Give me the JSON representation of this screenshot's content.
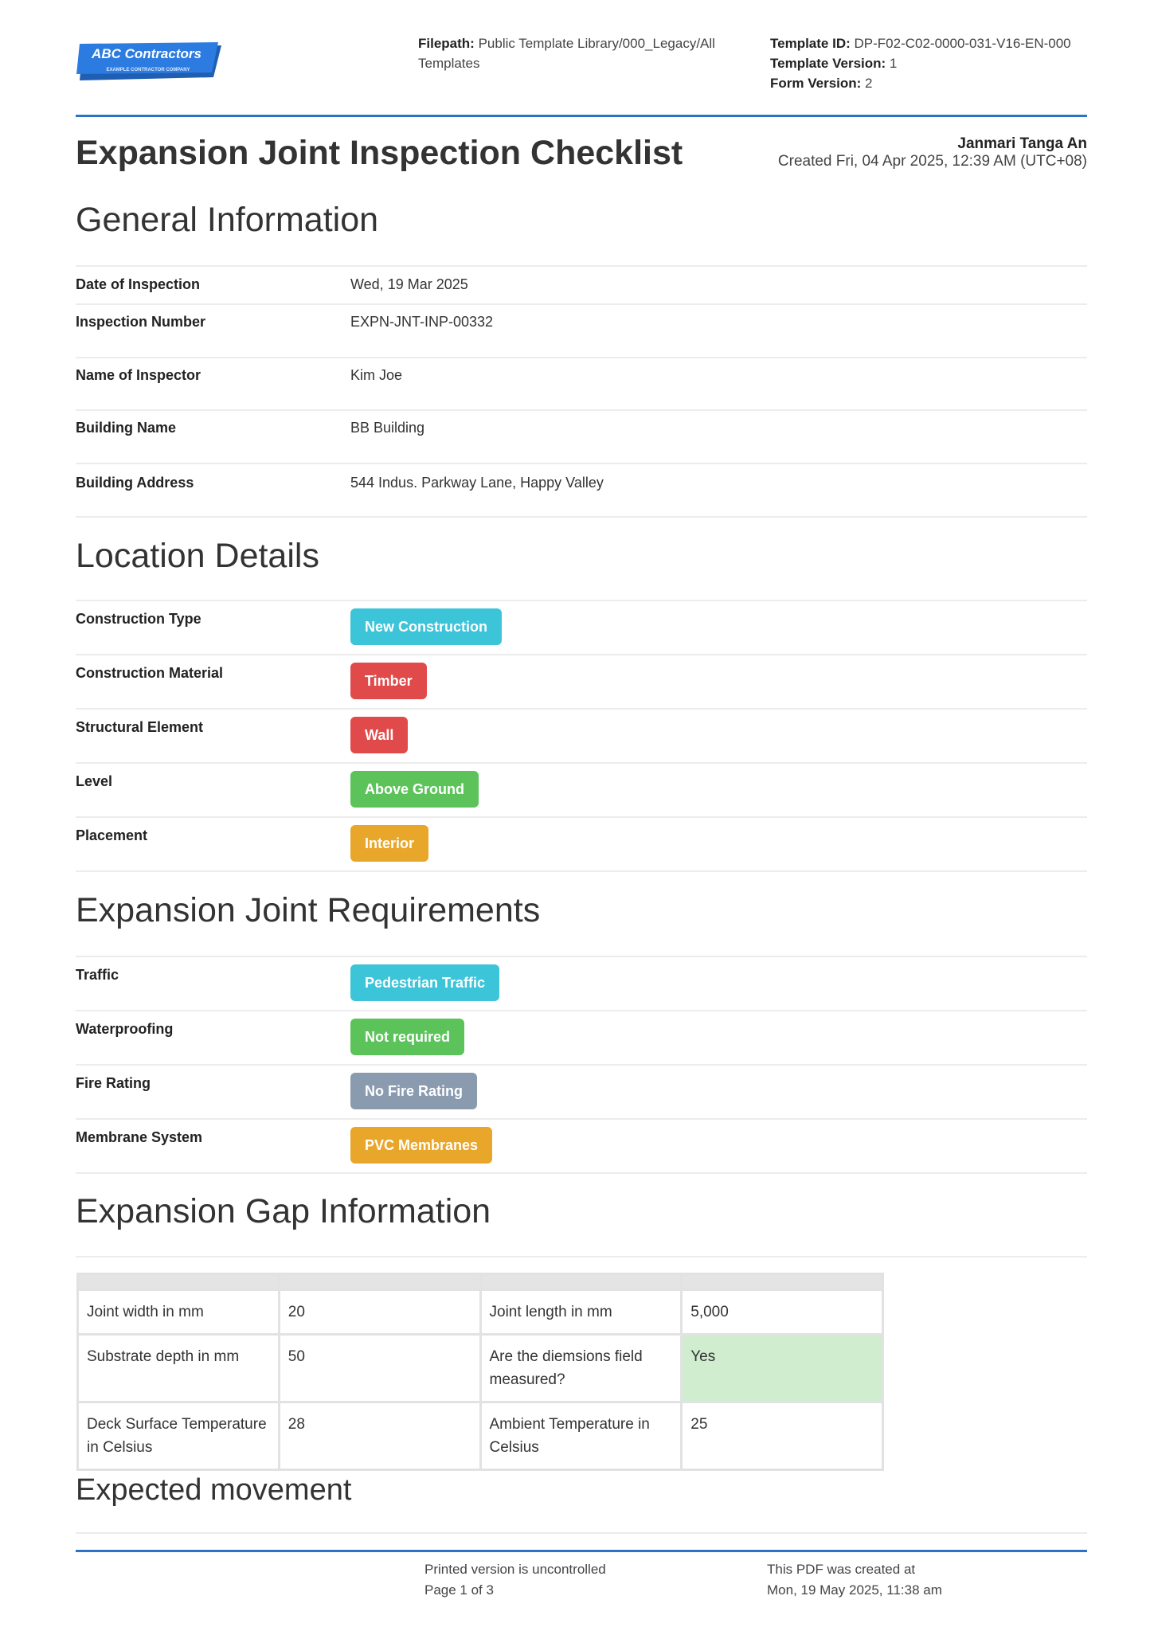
{
  "header": {
    "logo": {
      "name": "ABC Contractors",
      "tagline": "EXAMPLE CONTRACTOR COMPANY"
    },
    "filepath_label": "Filepath:",
    "filepath": "Public Template Library/000_Legacy/All Templates",
    "template_id_label": "Template ID:",
    "template_id": "DP-F02-C02-0000-031-V16-EN-000",
    "template_version_label": "Template Version:",
    "template_version": "1",
    "form_version_label": "Form Version:",
    "form_version": "2"
  },
  "title": "Expansion Joint Inspection Checklist",
  "author": "Janmari Tanga An",
  "created": "Created Fri, 04 Apr 2025, 12:39 AM (UTC+08)",
  "general": {
    "heading": "General Information",
    "rows": [
      {
        "label": "Date of Inspection",
        "value": "Wed, 19 Mar 2025"
      },
      {
        "label": "Inspection Number",
        "value": "EXPN-JNT-INP-00332"
      },
      {
        "label": "Name of Inspector",
        "value": "Kim Joe"
      },
      {
        "label": "Building Name",
        "value": "BB Building"
      },
      {
        "label": "Building Address",
        "value": "544 Indus. Parkway Lane, Happy Valley"
      }
    ]
  },
  "location": {
    "heading": "Location Details",
    "rows": [
      {
        "label": "Construction Type",
        "value": "New Construction",
        "color": "#3cc4d9"
      },
      {
        "label": "Construction Material",
        "value": "Timber",
        "color": "#e04a4a"
      },
      {
        "label": "Structural Element",
        "value": "Wall",
        "color": "#e04a4a"
      },
      {
        "label": "Level",
        "value": "Above Ground",
        "color": "#5cc35a"
      },
      {
        "label": "Placement",
        "value": "Interior",
        "color": "#e8a62b"
      }
    ]
  },
  "requirements": {
    "heading": "Expansion Joint Requirements",
    "rows": [
      {
        "label": "Traffic",
        "value": "Pedestrian Traffic",
        "color": "#3cc4d9"
      },
      {
        "label": "Waterproofing",
        "value": "Not required",
        "color": "#5cc35a"
      },
      {
        "label": "Fire Rating",
        "value": "No Fire Rating",
        "color": "#8a9bb0"
      },
      {
        "label": "Membrane System",
        "value": "PVC Membranes",
        "color": "#e8a62b"
      }
    ]
  },
  "gap": {
    "heading": "Expansion Gap Information",
    "rows": [
      [
        "Joint width in mm",
        "20",
        "Joint length in mm",
        "5,000"
      ],
      [
        "Substrate depth in mm",
        "50",
        "Are the diemsions field measured?",
        "Yes"
      ],
      [
        "Deck Surface Temperature in Celsius",
        "28",
        "Ambient Temperature in Celsius",
        "25"
      ]
    ],
    "highlight_color": "#d0edd0"
  },
  "movement": {
    "heading": "Expected movement"
  },
  "footer": {
    "uncontrolled": "Printed version is uncontrolled",
    "page": "Page 1 of 3",
    "pdf_created": "This PDF was created at",
    "pdf_date": "Mon, 19 May 2025, 11:38 am"
  }
}
